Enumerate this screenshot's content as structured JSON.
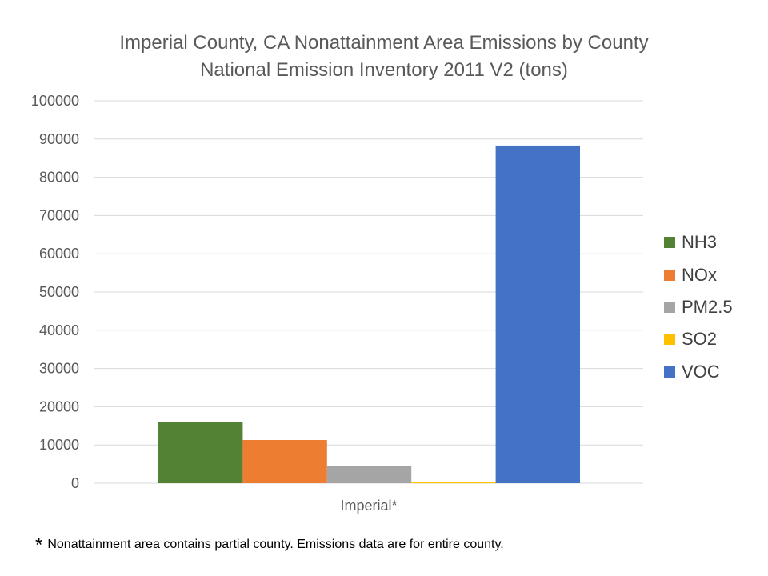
{
  "chart_data": {
    "type": "bar",
    "title": "Imperial County, CA Nonattainment Area Emissions by County",
    "subtitle": "National Emission Inventory 2011 V2 (tons)",
    "categories": [
      "Imperial*"
    ],
    "series": [
      {
        "name": "NH3",
        "color": "#548235",
        "values": [
          15900
        ]
      },
      {
        "name": "NOx",
        "color": "#ED7D31",
        "values": [
          11300
        ]
      },
      {
        "name": "PM2.5",
        "color": "#A5A5A5",
        "values": [
          4500
        ]
      },
      {
        "name": "SO2",
        "color": "#FFC000",
        "values": [
          300
        ]
      },
      {
        "name": "VOC",
        "color": "#4472C4",
        "values": [
          88300
        ]
      }
    ],
    "ylim": [
      0,
      100000
    ],
    "yticks": [
      "0",
      "10000",
      "20000",
      "30000",
      "40000",
      "50000",
      "60000",
      "70000",
      "80000",
      "90000",
      "100000"
    ],
    "grid": true,
    "legend": "right"
  },
  "footnote": {
    "star": "*",
    "text": "Nonattainment area contains partial county.  Emissions data are for entire county."
  }
}
